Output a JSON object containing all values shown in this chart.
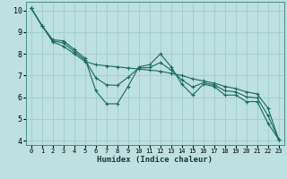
{
  "xlabel": "Humidex (Indice chaleur)",
  "xlim": [
    -0.5,
    23.5
  ],
  "ylim": [
    3.8,
    10.4
  ],
  "xticks": [
    0,
    1,
    2,
    3,
    4,
    5,
    6,
    7,
    8,
    9,
    10,
    11,
    12,
    13,
    14,
    15,
    16,
    17,
    18,
    19,
    20,
    21,
    22,
    23
  ],
  "yticks": [
    4,
    5,
    6,
    7,
    8,
    9,
    10
  ],
  "background_color": "#bde0e0",
  "grid_color": "#9ecece",
  "line_color": "#1a6b5a",
  "line1_x": [
    0,
    1,
    2,
    3,
    4,
    5,
    6,
    7,
    8,
    9,
    10,
    11,
    12,
    13,
    14,
    15,
    16,
    17,
    18,
    19,
    20,
    21,
    22,
    23
  ],
  "line1_y": [
    10.1,
    9.3,
    8.65,
    8.6,
    8.2,
    7.8,
    6.3,
    5.7,
    5.7,
    6.5,
    7.4,
    7.5,
    8.0,
    7.4,
    6.6,
    6.1,
    6.6,
    6.5,
    6.1,
    6.1,
    5.8,
    5.8,
    4.8,
    4.05
  ],
  "line2_x": [
    0,
    1,
    2,
    3,
    4,
    5,
    6,
    7,
    8,
    9,
    10,
    11,
    12,
    13,
    14,
    15,
    16,
    17,
    18,
    19,
    20,
    21,
    22,
    23
  ],
  "line2_y": [
    10.1,
    9.3,
    8.55,
    8.35,
    8.0,
    7.65,
    7.5,
    7.45,
    7.4,
    7.35,
    7.3,
    7.25,
    7.2,
    7.1,
    7.0,
    6.85,
    6.75,
    6.65,
    6.5,
    6.4,
    6.25,
    6.15,
    5.5,
    4.05
  ],
  "line3_x": [
    0,
    1,
    2,
    3,
    4,
    5,
    6,
    7,
    8,
    9,
    10,
    11,
    12,
    13,
    14,
    15,
    16,
    17,
    18,
    19,
    20,
    21,
    22,
    23
  ],
  "line3_y": [
    10.1,
    9.3,
    8.6,
    8.5,
    8.1,
    7.72,
    6.9,
    6.57,
    6.55,
    6.92,
    7.35,
    7.37,
    7.6,
    7.25,
    6.8,
    6.47,
    6.67,
    6.57,
    6.3,
    6.25,
    6.02,
    5.97,
    5.15,
    4.05
  ]
}
